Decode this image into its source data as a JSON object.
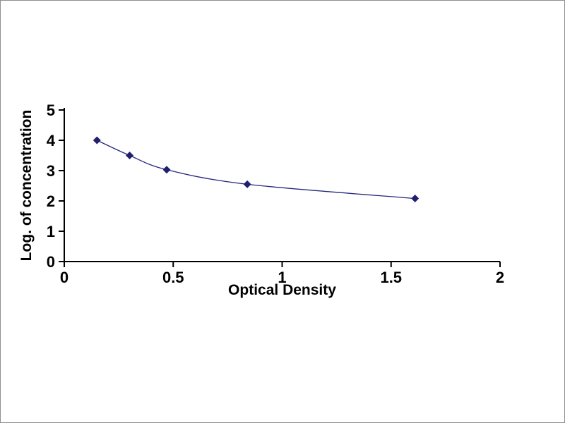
{
  "chart_data": {
    "type": "line",
    "title": "",
    "xlabel": "Optical Density",
    "ylabel": "Log. of concentration",
    "x": [
      0.15,
      0.3,
      0.47,
      0.84,
      1.61
    ],
    "y": [
      4.0,
      3.5,
      3.03,
      2.55,
      2.08
    ],
    "xlim": [
      0,
      2
    ],
    "ylim": [
      0,
      5
    ],
    "x_ticks": [
      0,
      0.5,
      1,
      1.5,
      2
    ],
    "x_tick_labels": [
      "0",
      "0.5",
      "1",
      "1.5",
      "2"
    ],
    "y_ticks": [
      0,
      1,
      2,
      3,
      4,
      5
    ],
    "y_tick_labels": [
      "0",
      "1",
      "2",
      "3",
      "4",
      "5"
    ],
    "grid": false,
    "legend": "none",
    "marker": "diamond",
    "colors": {
      "line": "#26267e",
      "marker": "#1f1f6e",
      "axis": "#000000",
      "text": "#000000",
      "background": "#ffffff",
      "frame_border": "#8f8f8f"
    }
  }
}
